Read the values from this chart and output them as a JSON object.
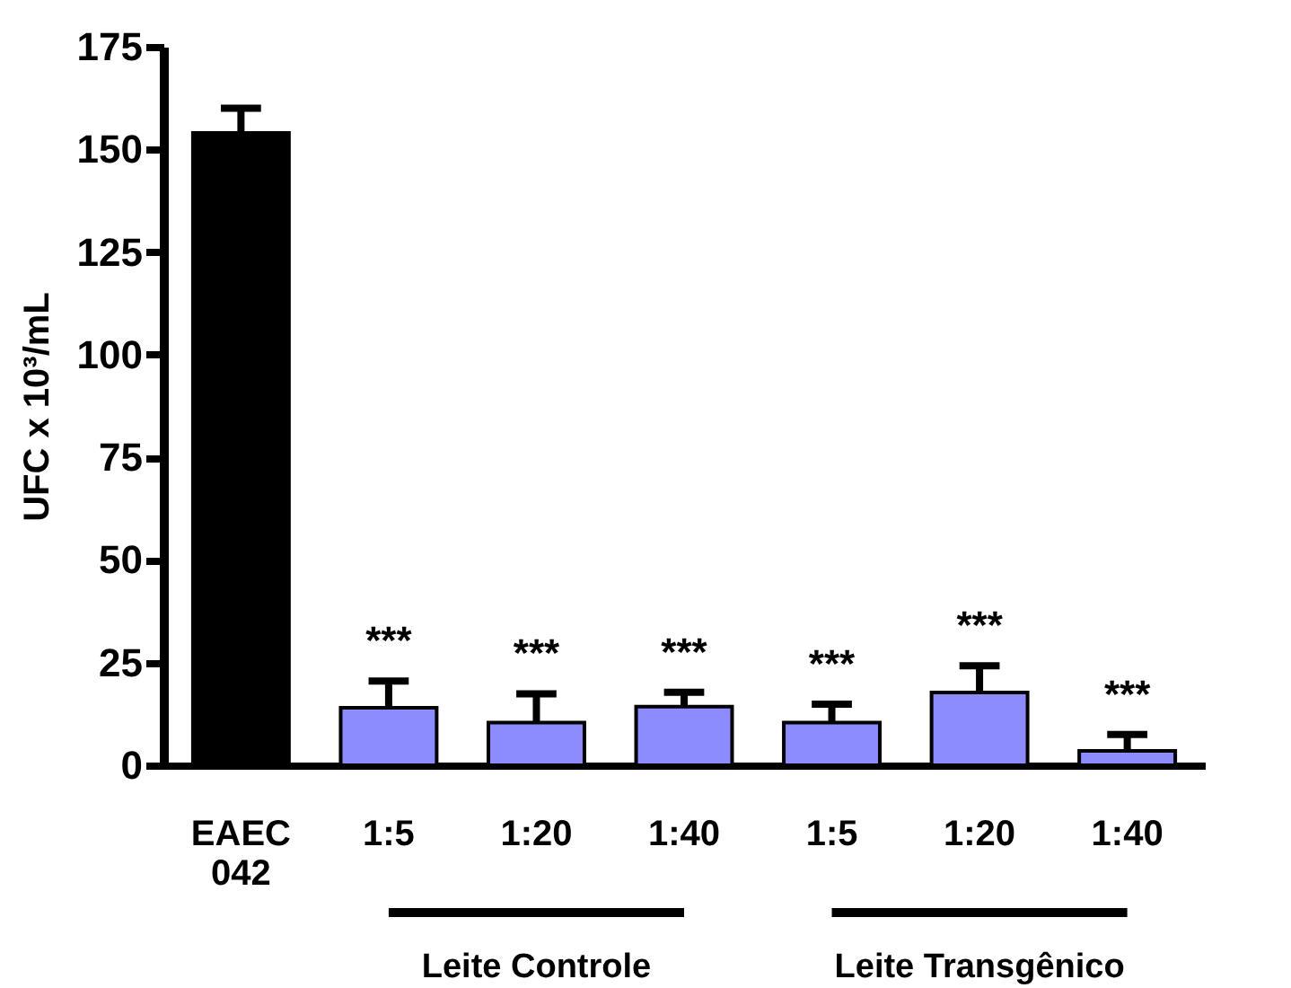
{
  "chart_data": {
    "type": "bar",
    "ylabel": "UFC x 10³/mL",
    "categories": [
      "EAEC 042",
      "1:5",
      "1:20",
      "1:40",
      "1:5",
      "1:20",
      "1:40"
    ],
    "values": [
      154,
      14,
      10.4,
      14.3,
      10.4,
      17.7,
      3.5
    ],
    "errors": [
      6,
      6.5,
      7,
      3.5,
      4.5,
      6.5,
      4
    ],
    "colors": [
      "#000000",
      "#8c8cff",
      "#8c8cff",
      "#8c8cff",
      "#8c8cff",
      "#8c8cff",
      "#8c8cff"
    ],
    "value_labels": [
      null,
      "***",
      "***",
      "***",
      "***",
      "***",
      "***"
    ],
    "annotations": [
      "Leite Controle",
      "Leite Transgênico"
    ],
    "ylim": [
      0,
      175
    ],
    "yticks": [
      0,
      25,
      50,
      75,
      100,
      125,
      150,
      175
    ],
    "grid": false
  }
}
